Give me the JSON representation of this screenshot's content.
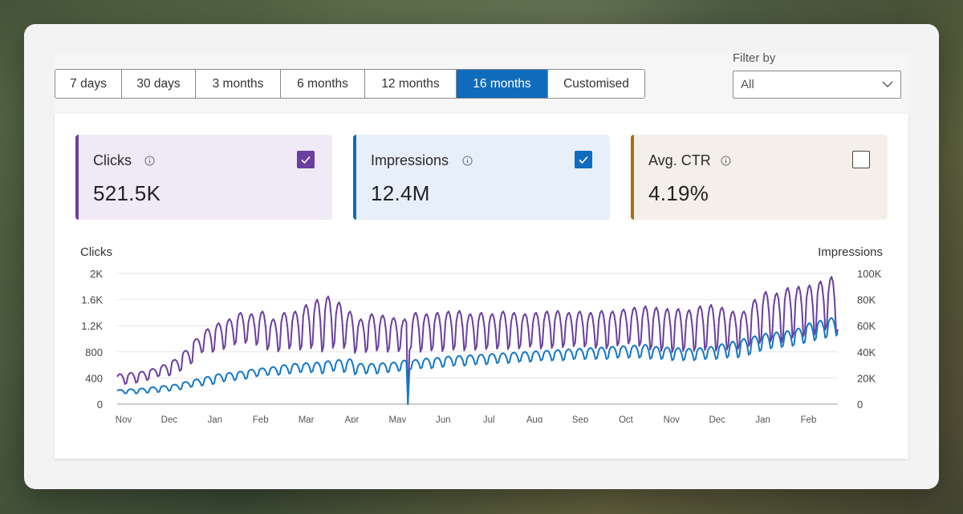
{
  "date_ranges": [
    "7 days",
    "30 days",
    "3 months",
    "6 months",
    "12 months",
    "16 months",
    "Customised"
  ],
  "active_range": "16 months",
  "filter": {
    "label": "Filter by",
    "value": "All"
  },
  "metrics": {
    "clicks": {
      "label": "Clicks",
      "value": "521.5K",
      "checked": true,
      "color": "#6b3fa0",
      "bg": "#efeaf5"
    },
    "impressions": {
      "label": "Impressions",
      "value": "12.4M",
      "checked": true,
      "color": "#0f6cbd",
      "bg": "#e7effa"
    },
    "ctr": {
      "label": "Avg. CTR",
      "value": "4.19%",
      "checked": false,
      "color": "#a8700f",
      "bg": "#f4f0e9"
    }
  },
  "chart": {
    "left_axis_title": "Clicks",
    "right_axis_title": "Impressions"
  },
  "colors": {
    "accent": "#0f6cbd",
    "clicks": "#6b3fa0",
    "impressions": "#1478c8",
    "grid": "#e6e6e6"
  },
  "chart_data": {
    "type": "line",
    "title": "",
    "xlabel": "",
    "ylabel": "Clicks",
    "y2label": "Impressions",
    "ylim": [
      0,
      2000
    ],
    "y2lim": [
      0,
      100000
    ],
    "yticks": [
      "0",
      "400",
      "800",
      "1.2K",
      "1.6K",
      "2K"
    ],
    "y2ticks": [
      "0",
      "20K",
      "40K",
      "60K",
      "80K",
      "100K"
    ],
    "x_labels": [
      "Nov",
      "Dec",
      "Jan",
      "Feb",
      "Mar",
      "Apr",
      "May",
      "Jun",
      "Jul",
      "Aug",
      "Sep",
      "Oct",
      "Nov",
      "Dec",
      "Jan",
      "Feb"
    ],
    "series": [
      {
        "name": "Clicks",
        "axis": "left",
        "weekly_trough": [
          300,
          320,
          360,
          420,
          430,
          500,
          610,
          780,
          780,
          820,
          890,
          910,
          880,
          800,
          780,
          820,
          800,
          820,
          760,
          820,
          820,
          750,
          770,
          790,
          770,
          780,
          800,
          770,
          790,
          780,
          800,
          790,
          800,
          810,
          820,
          810,
          820,
          850,
          820,
          830,
          840,
          860,
          850,
          830,
          820,
          870,
          900,
          860,
          800,
          780,
          760,
          780,
          780,
          790,
          780,
          800,
          810,
          860,
          900,
          920,
          900,
          980,
          1000,
          1020,
          1100,
          1000
        ],
        "weekly_peak": [
          460,
          480,
          500,
          540,
          600,
          680,
          820,
          1000,
          1150,
          1240,
          1300,
          1400,
          1380,
          1420,
          1300,
          1400,
          1420,
          1520,
          1600,
          1650,
          1560,
          1420,
          1300,
          1380,
          1360,
          1320,
          1300,
          1400,
          1380,
          1400,
          1420,
          1430,
          1380,
          1400,
          1380,
          1420,
          1400,
          1380,
          1400,
          1420,
          1430,
          1400,
          1420,
          1400,
          1430,
          1420,
          1450,
          1480,
          1500,
          1480,
          1460,
          1460,
          1440,
          1500,
          1520,
          1480,
          1420,
          1420,
          1600,
          1720,
          1700,
          1780,
          1800,
          1820,
          1880,
          1950
        ]
      },
      {
        "name": "Impressions",
        "axis": "right",
        "weekly_trough": [
          8000,
          8000,
          8500,
          9000,
          10000,
          11000,
          13000,
          14000,
          15000,
          17000,
          18000,
          19000,
          21000,
          22000,
          22000,
          23000,
          24000,
          24000,
          23000,
          25000,
          24000,
          22000,
          23000,
          23000,
          24000,
          25000,
          26000,
          27000,
          27000,
          28000,
          29000,
          29000,
          30000,
          30000,
          31000,
          31000,
          32000,
          32000,
          33000,
          33000,
          33000,
          34000,
          34000,
          34000,
          34000,
          35000,
          35000,
          35000,
          34000,
          34000,
          33000,
          33000,
          33000,
          34000,
          34000,
          35000,
          35000,
          37000,
          40000,
          42000,
          43000,
          44000,
          46000,
          48000,
          50000,
          52000
        ],
        "weekly_peak": [
          11000,
          11500,
          12000,
          13000,
          14000,
          15000,
          17000,
          19000,
          21000,
          23000,
          24000,
          25000,
          26500,
          27500,
          28500,
          30000,
          31000,
          31500,
          32000,
          33000,
          34000,
          34500,
          31000,
          31000,
          31500,
          32000,
          33500,
          34000,
          35000,
          35500,
          36500,
          37000,
          37500,
          38000,
          38500,
          39000,
          39500,
          40000,
          40500,
          41000,
          41500,
          42000,
          42500,
          43000,
          43500,
          44000,
          44500,
          45000,
          45500,
          44000,
          43500,
          43000,
          42500,
          43000,
          44000,
          46000,
          48000,
          50000,
          52000,
          54000,
          55000,
          56000,
          58000,
          62000,
          64000,
          66000
        ]
      }
    ],
    "annotations": [
      "Sharp one-day drop to ~0 for both series in early May"
    ]
  }
}
